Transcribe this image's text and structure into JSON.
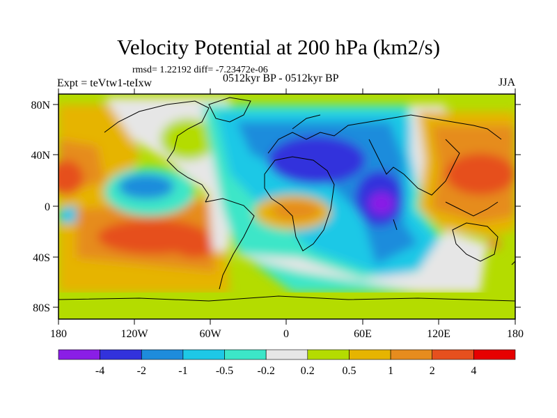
{
  "title": "Velocity Potential at 200 hPa (km2/s)",
  "stats": "rmsd= 1.22192 diff= -7.23472e-06",
  "experiment": "Expt = teVtw1-teIxw",
  "period": "0512kyr BP - 0512kyr BP",
  "season": "JJA",
  "lat_ticks": [
    "80N",
    "40N",
    "0",
    "40S",
    "80S"
  ],
  "lon_ticks": [
    "180",
    "120W",
    "60W",
    "0",
    "60E",
    "120E",
    "180"
  ],
  "colorbar": {
    "labels": [
      "-4",
      "-2",
      "-1",
      "-0.5",
      "-0.2",
      "0.2",
      "0.5",
      "1",
      "2",
      "4"
    ],
    "colors": [
      "#8a1ee6",
      "#3232dc",
      "#1e8cdc",
      "#1ec8e6",
      "#3ce6c8",
      "#e6e6e6",
      "#b4dc00",
      "#e6b400",
      "#e68c1e",
      "#e6501e",
      "#e60000"
    ]
  }
}
